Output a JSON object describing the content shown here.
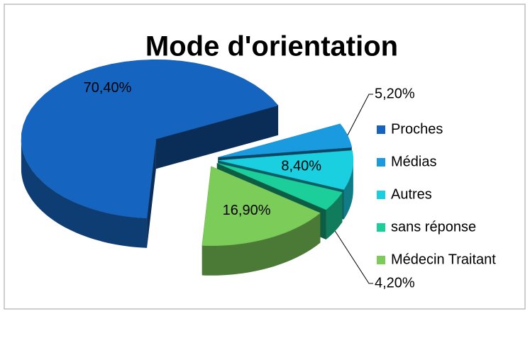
{
  "chart_data": {
    "type": "pie3d",
    "title": "Mode d'orientation",
    "categories": [
      "Proches",
      "Médias",
      "Autres",
      "sans réponse",
      "Médecin Traitant"
    ],
    "values": [
      70.4,
      5.2,
      8.4,
      4.2,
      16.9
    ],
    "value_labels": [
      "70,40%",
      "5,20%",
      "8,40%",
      "4,20%",
      "16,90%"
    ],
    "colors": [
      "#1565c0",
      "#1a9be0",
      "#1ad0e0",
      "#1ccf9a",
      "#7ccc5a"
    ],
    "legend": "right"
  }
}
